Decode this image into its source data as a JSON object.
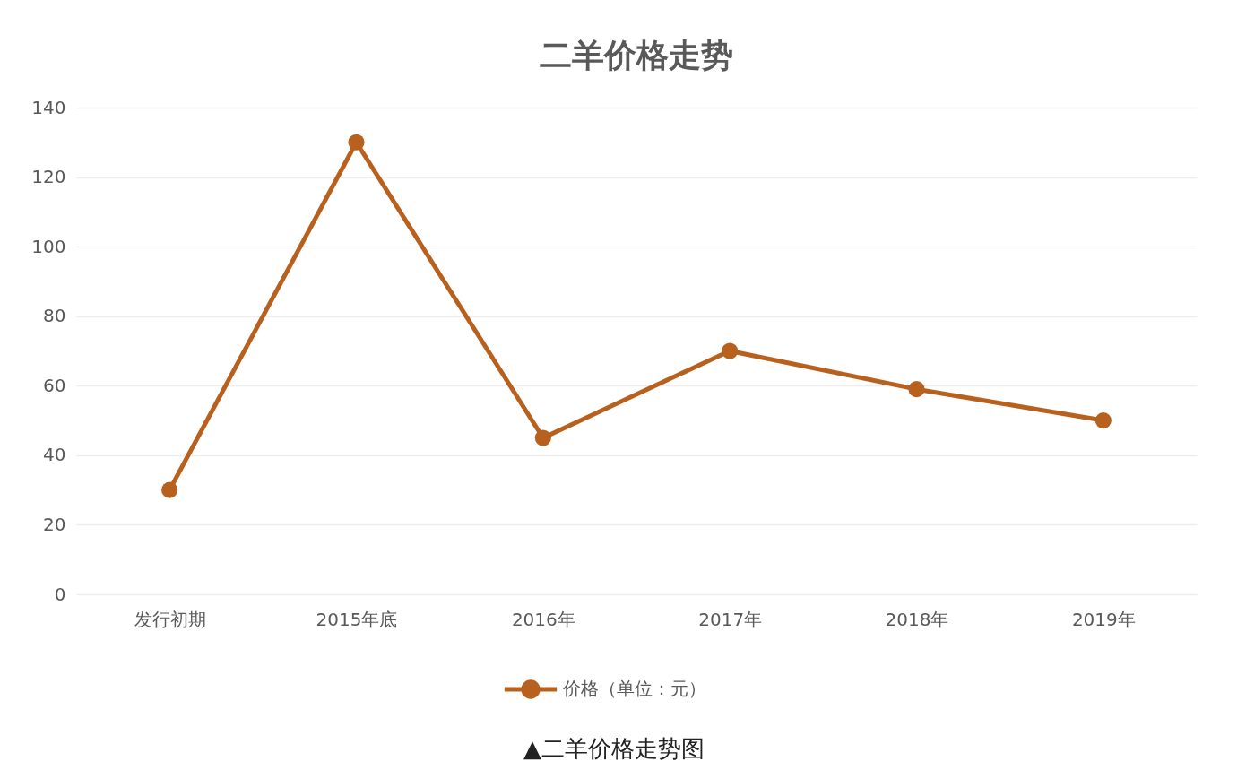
{
  "chart_data": {
    "type": "line",
    "title": "二羊价格走势",
    "categories": [
      "发行初期",
      "2015年底",
      "2016年",
      "2017年",
      "2018年",
      "2019年"
    ],
    "series": [
      {
        "name": "价格（单位：元）",
        "color": "#b8611f",
        "values": [
          30,
          130,
          45,
          70,
          59,
          50
        ]
      }
    ],
    "ylim": [
      0,
      140
    ],
    "yticks": [
      0,
      20,
      40,
      60,
      80,
      100,
      120,
      140
    ],
    "grid": "y",
    "legend": "bottom",
    "marker": "circle",
    "annotations": [
      "▲二羊价格走势图"
    ]
  }
}
